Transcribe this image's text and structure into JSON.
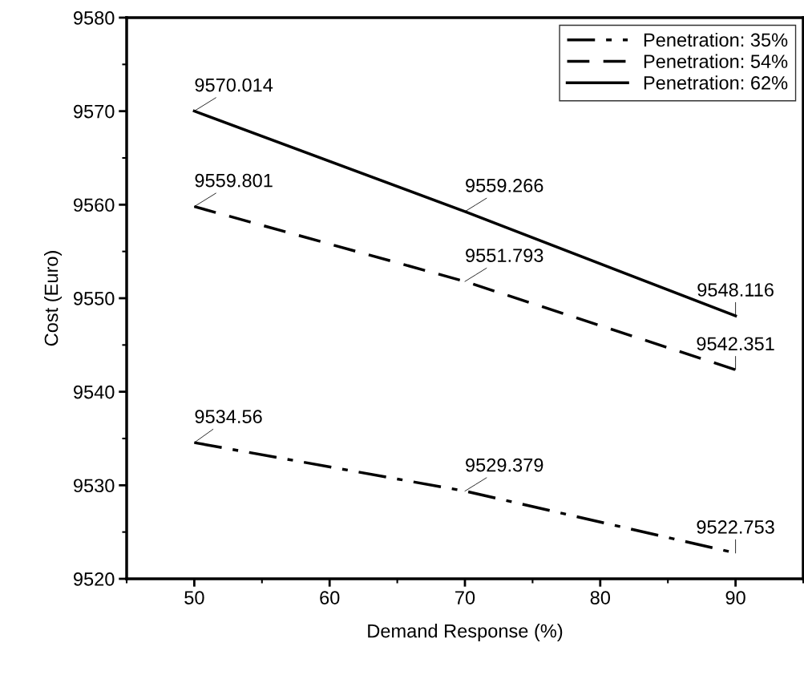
{
  "chart_data": {
    "type": "line",
    "xlabel": "Demand Response (%)",
    "ylabel": "Cost (Euro)",
    "x": [
      50,
      70,
      90
    ],
    "series": [
      {
        "name": "Penetration: 35%",
        "color": "#000000",
        "line_style": "dashdot",
        "values": [
          9534.56,
          9529.379,
          9522.753
        ]
      },
      {
        "name": "Penetration: 54%",
        "color": "#000000",
        "line_style": "dashed",
        "values": [
          9559.801,
          9551.793,
          9542.351
        ]
      },
      {
        "name": "Penetration: 62%",
        "color": "#000000",
        "line_style": "solid",
        "values": [
          9570.014,
          9559.266,
          9548.116
        ]
      }
    ],
    "xlim": [
      45,
      95
    ],
    "xticks": [
      50,
      60,
      70,
      80,
      90
    ],
    "ylim": [
      9520,
      9580
    ],
    "yticks": [
      9520,
      9530,
      9540,
      9550,
      9560,
      9570,
      9580
    ],
    "data_labels": true,
    "legend": "top right",
    "grid": false,
    "marker": "none"
  }
}
